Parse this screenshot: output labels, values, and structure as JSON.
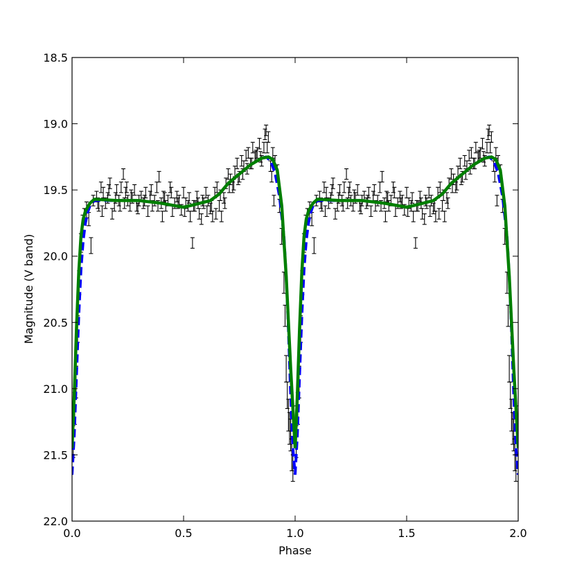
{
  "chart_data": {
    "type": "scatter",
    "title": "",
    "xlabel": "Phase",
    "ylabel": "Magnitude (V band)",
    "xlim": [
      0.0,
      2.0
    ],
    "ylim": [
      18.5,
      22.0
    ],
    "y_inverted": true,
    "grid": false,
    "xticks": [
      "0.0",
      "0.5",
      "1.0",
      "1.5",
      "2.0"
    ],
    "yticks": [
      "18.5",
      "19.0",
      "19.5",
      "20.0",
      "20.5",
      "21.0",
      "21.5",
      "22.0"
    ],
    "colors": {
      "observations": "#000000",
      "dashed_model": "#0000ff",
      "solid_model": "#007f00"
    },
    "series": [
      {
        "style": "solid",
        "color": "#007f00",
        "x": [
          0.0,
          0.01,
          0.02,
          0.03,
          0.04,
          0.05,
          0.06,
          0.08,
          0.1,
          0.2,
          0.3,
          0.4,
          0.5,
          0.55,
          0.62,
          0.66,
          0.7,
          0.75,
          0.8,
          0.85,
          0.88,
          0.9,
          0.92,
          0.94,
          0.96,
          0.98,
          1.0
        ],
        "y": [
          21.45,
          21.05,
          20.55,
          20.12,
          19.85,
          19.72,
          19.66,
          19.6,
          19.57,
          19.58,
          19.58,
          19.6,
          19.63,
          19.61,
          19.58,
          19.53,
          19.45,
          19.38,
          19.31,
          19.26,
          19.25,
          19.27,
          19.35,
          19.62,
          20.15,
          20.85,
          21.45
        ]
      },
      {
        "style": "dashed",
        "color": "#0000ff",
        "x": [
          0.0,
          0.01,
          0.02,
          0.03,
          0.04,
          0.05,
          0.06,
          0.07,
          0.08,
          0.1,
          0.2,
          0.3,
          0.4,
          0.5,
          0.55,
          0.62,
          0.66,
          0.7,
          0.75,
          0.8,
          0.85,
          0.87,
          0.89,
          0.91,
          0.93,
          0.95,
          0.96,
          0.97,
          0.98,
          0.99,
          1.0
        ],
        "y": [
          21.65,
          21.35,
          20.9,
          20.45,
          20.1,
          19.88,
          19.75,
          19.67,
          19.62,
          19.58,
          19.58,
          19.58,
          19.6,
          19.63,
          19.61,
          19.58,
          19.53,
          19.45,
          19.38,
          19.31,
          19.26,
          19.25,
          19.28,
          19.37,
          19.55,
          19.85,
          20.15,
          20.55,
          21.05,
          21.45,
          21.65
        ]
      }
    ],
    "observations": {
      "x": [
        0.005,
        0.012,
        0.018,
        0.025,
        0.032,
        0.04,
        0.048,
        0.055,
        0.065,
        0.075,
        0.085,
        0.095,
        0.11,
        0.12,
        0.13,
        0.14,
        0.15,
        0.16,
        0.17,
        0.18,
        0.19,
        0.2,
        0.21,
        0.22,
        0.23,
        0.24,
        0.25,
        0.26,
        0.27,
        0.28,
        0.29,
        0.3,
        0.31,
        0.32,
        0.33,
        0.34,
        0.35,
        0.36,
        0.37,
        0.38,
        0.39,
        0.4,
        0.41,
        0.42,
        0.43,
        0.44,
        0.45,
        0.46,
        0.47,
        0.48,
        0.49,
        0.5,
        0.51,
        0.52,
        0.53,
        0.54,
        0.55,
        0.56,
        0.57,
        0.58,
        0.59,
        0.6,
        0.61,
        0.62,
        0.63,
        0.64,
        0.65,
        0.66,
        0.67,
        0.68,
        0.69,
        0.7,
        0.71,
        0.72,
        0.73,
        0.74,
        0.75,
        0.76,
        0.77,
        0.78,
        0.79,
        0.8,
        0.81,
        0.82,
        0.83,
        0.84,
        0.85,
        0.86,
        0.87,
        0.88,
        0.89,
        0.9,
        0.91,
        0.92,
        0.93,
        0.94,
        0.95,
        0.96,
        0.97,
        0.98,
        0.99,
        0.955,
        0.965,
        0.975,
        0.985,
        0.995,
        0.215,
        0.245,
        0.405,
        0.445,
        0.545,
        0.585,
        0.645,
        0.685,
        0.725,
        0.765,
        0.805,
        0.845,
        0.875,
        0.865,
        0.895,
        0.905,
        0.115,
        0.135,
        0.165,
        0.195,
        0.235,
        0.265,
        0.295,
        0.325,
        0.355,
        0.385,
        0.415,
        0.475,
        0.505,
        0.525,
        0.565,
        0.605,
        0.625,
        0.665,
        0.705,
        0.745,
        0.785,
        0.825
      ],
      "y": [
        21.4,
        21.15,
        20.95,
        20.55,
        20.2,
        19.9,
        19.75,
        19.7,
        19.65,
        19.72,
        19.92,
        19.58,
        19.55,
        19.62,
        19.48,
        19.52,
        19.6,
        19.56,
        19.45,
        19.68,
        19.62,
        19.5,
        19.58,
        19.48,
        19.38,
        19.52,
        19.58,
        19.62,
        19.56,
        19.5,
        19.62,
        19.58,
        19.55,
        19.6,
        19.52,
        19.66,
        19.55,
        19.62,
        19.58,
        19.48,
        19.4,
        19.6,
        19.55,
        19.62,
        19.58,
        19.48,
        19.66,
        19.6,
        19.55,
        19.58,
        19.65,
        19.52,
        19.6,
        19.62,
        19.7,
        19.9,
        19.62,
        19.55,
        19.68,
        19.72,
        19.6,
        19.52,
        19.58,
        19.64,
        19.7,
        19.52,
        19.48,
        19.62,
        19.7,
        19.56,
        19.45,
        19.38,
        19.42,
        19.48,
        19.36,
        19.3,
        19.4,
        19.28,
        19.32,
        19.24,
        19.22,
        19.3,
        19.18,
        19.25,
        19.22,
        19.15,
        19.28,
        19.18,
        19.05,
        19.1,
        19.32,
        19.22,
        19.28,
        19.35,
        19.62,
        19.85,
        20.2,
        20.85,
        21.2,
        21.35,
        21.6,
        20.45,
        21.05,
        21.3,
        21.5,
        21.25,
        19.62,
        19.48,
        19.7,
        19.52,
        19.62,
        19.58,
        19.68,
        19.6,
        19.46,
        19.38,
        19.3,
        19.25,
        19.18,
        19.08,
        19.4,
        19.58,
        19.6,
        19.66,
        19.5,
        19.56,
        19.6,
        19.54,
        19.64,
        19.58,
        19.5,
        19.62,
        19.56,
        19.6,
        19.66,
        19.56,
        19.6,
        19.66,
        19.62,
        19.54,
        19.48,
        19.42,
        19.34,
        19.24
      ],
      "errors": [
        0.12,
        0.12,
        0.12,
        0.1,
        0.09,
        0.07,
        0.06,
        0.06,
        0.06,
        0.05,
        0.06,
        0.04,
        0.04,
        0.04,
        0.04,
        0.04,
        0.04,
        0.04,
        0.04,
        0.04,
        0.04,
        0.04,
        0.04,
        0.04,
        0.04,
        0.04,
        0.04,
        0.04,
        0.04,
        0.04,
        0.04,
        0.04,
        0.04,
        0.04,
        0.04,
        0.04,
        0.04,
        0.04,
        0.04,
        0.04,
        0.04,
        0.04,
        0.04,
        0.04,
        0.04,
        0.04,
        0.04,
        0.04,
        0.04,
        0.04,
        0.04,
        0.04,
        0.04,
        0.04,
        0.04,
        0.04,
        0.04,
        0.04,
        0.04,
        0.04,
        0.04,
        0.04,
        0.04,
        0.04,
        0.04,
        0.04,
        0.04,
        0.04,
        0.04,
        0.04,
        0.04,
        0.04,
        0.04,
        0.04,
        0.04,
        0.04,
        0.04,
        0.04,
        0.04,
        0.04,
        0.04,
        0.04,
        0.04,
        0.04,
        0.04,
        0.04,
        0.04,
        0.04,
        0.04,
        0.04,
        0.04,
        0.04,
        0.04,
        0.04,
        0.05,
        0.06,
        0.08,
        0.1,
        0.12,
        0.12,
        0.1,
        0.08,
        0.1,
        0.12,
        0.12,
        0.12,
        0.04,
        0.04,
        0.04,
        0.04,
        0.04,
        0.04,
        0.04,
        0.04,
        0.04,
        0.04,
        0.04,
        0.04,
        0.04,
        0.04,
        0.04,
        0.04,
        0.04,
        0.04,
        0.04,
        0.04,
        0.04,
        0.04,
        0.04,
        0.04,
        0.04,
        0.04,
        0.04,
        0.04,
        0.04,
        0.04,
        0.04,
        0.04,
        0.04,
        0.04,
        0.04,
        0.04,
        0.04,
        0.04
      ],
      "repeat_period": 1.0
    }
  }
}
